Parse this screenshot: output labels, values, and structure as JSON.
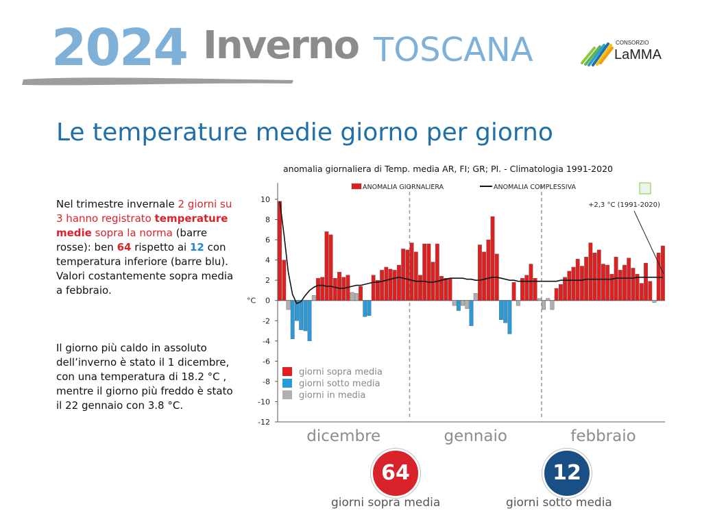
{
  "header": {
    "year": "2024",
    "season": "Inverno",
    "region": "TOSCANA",
    "logo_small": "CONSORZIO",
    "logo_big": "LaMMA",
    "year_color": "#7fb0d8",
    "season_color": "#8c8c8c"
  },
  "subtitle": "Le temperature medie giorno per giorno",
  "text": {
    "p1_a": "Nel trimestre invernale ",
    "p1_b": "2 giorni su 3 hanno registrato ",
    "p1_c": "temperature medie",
    "p1_d": " sopra la norma",
    "p1_e": " (barre rosse): ben ",
    "p1_f": "64",
    "p1_g": " rispetto ai ",
    "p1_h": "12",
    "p1_i": " con temperatura inferiore (barre blu). Valori  costantemente sopra media a febbraio.",
    "p2": "Il giorno più caldo in assoluto dell’inverno è stato il 1 dicembre, con una temperatura di 18.2 °C , mentre il giorno più freddo è stato il 22 gennaio con 3.8 °C."
  },
  "chart_data": {
    "type": "bar",
    "title": "anomalia giornaliera di Temp. media AR, FI; GR; PI. - Climatologia  1991-2020",
    "ylabel": "°C",
    "ylim": [
      -12,
      10
    ],
    "yticks": [
      10,
      8,
      6,
      4,
      2,
      0,
      -2,
      -4,
      -6,
      -8,
      -10,
      -12
    ],
    "months": [
      "dicembre",
      "gennaio",
      "febbraio"
    ],
    "month_days": [
      31,
      31,
      29
    ],
    "legend_top": {
      "bars": "ANOMALIA GIORNALIERA",
      "line": "ANOMALIA COMPLESSIVA"
    },
    "legend_bottom": [
      "giorni sopra media",
      "giorni sotto media",
      "giorni in media"
    ],
    "annotation": "+2,3 °C (1991-2020)",
    "overall_anomaly": 2.3,
    "colors": {
      "above": "#e02020",
      "below": "#2a9ad8",
      "normal": "#b0b0b0",
      "line": "#111111"
    },
    "daily_anomaly": [
      9.8,
      4.0,
      -0.9,
      -3.8,
      -2.0,
      -2.9,
      -3.0,
      -4.0,
      0.5,
      2.2,
      2.3,
      6.8,
      6.5,
      2.2,
      2.8,
      2.3,
      2.5,
      0.8,
      0.7,
      1.4,
      -1.6,
      -1.5,
      2.5,
      2.0,
      3.0,
      3.3,
      3.1,
      3.0,
      3.5,
      5.1,
      5.0,
      5.7,
      4.8,
      2.5,
      5.6,
      5.6,
      3.8,
      5.6,
      2.4,
      2.2,
      2.2,
      -0.5,
      -1.0,
      -0.5,
      -0.8,
      -2.5,
      0.7,
      5.5,
      4.8,
      6.0,
      8.3,
      4.6,
      -1.9,
      -2.2,
      -3.3,
      1.8,
      -0.5,
      2.2,
      2.5,
      3.6,
      2.2,
      0.2,
      -0.9,
      0.2,
      -0.9,
      1.2,
      1.6,
      2.3,
      2.9,
      3.3,
      4.1,
      3.4,
      4.3,
      5.7,
      4.7,
      5.0,
      3.6,
      3.5,
      2.6,
      4.3,
      3.0,
      3.5,
      4.2,
      3.2,
      2.6,
      1.7,
      3.7,
      1.9,
      -0.2,
      4.7,
      5.4
    ],
    "overall_line": [
      9.8,
      6.5,
      2.8,
      0.6,
      -0.3,
      -0.1,
      0.5,
      1.0,
      1.3,
      1.5,
      1.5,
      1.4,
      1.4,
      1.3,
      1.2,
      1.2,
      1.3,
      1.4,
      1.5,
      1.5,
      1.6,
      1.7,
      1.8,
      1.8,
      1.9,
      2.0,
      2.1,
      2.2,
      2.3,
      2.2,
      2.1,
      2.0,
      1.9,
      1.9,
      1.9,
      1.8,
      1.8,
      1.9,
      2.0,
      2.1,
      2.2,
      2.2,
      2.2,
      2.2,
      2.1,
      2.1,
      2.0,
      2.0,
      2.1,
      2.2,
      2.3,
      2.3,
      2.2,
      2.1,
      2.0,
      2.0,
      1.9,
      1.9,
      1.9,
      1.9,
      1.9,
      1.9,
      1.9,
      1.9,
      1.9,
      1.9,
      2.0,
      2.0,
      2.0,
      2.0,
      2.0,
      2.0,
      2.1,
      2.1,
      2.1,
      2.1,
      2.1,
      2.1,
      2.1,
      2.2,
      2.2,
      2.2,
      2.2,
      2.2,
      2.3,
      2.3,
      2.3,
      2.3,
      2.3,
      2.3,
      2.3
    ]
  },
  "badges": {
    "above_count": "64",
    "above_label": "giorni sopra media",
    "below_count": "12",
    "below_label": "giorni sotto media",
    "above_color": "#d8232a",
    "below_color": "#1a4f86"
  }
}
